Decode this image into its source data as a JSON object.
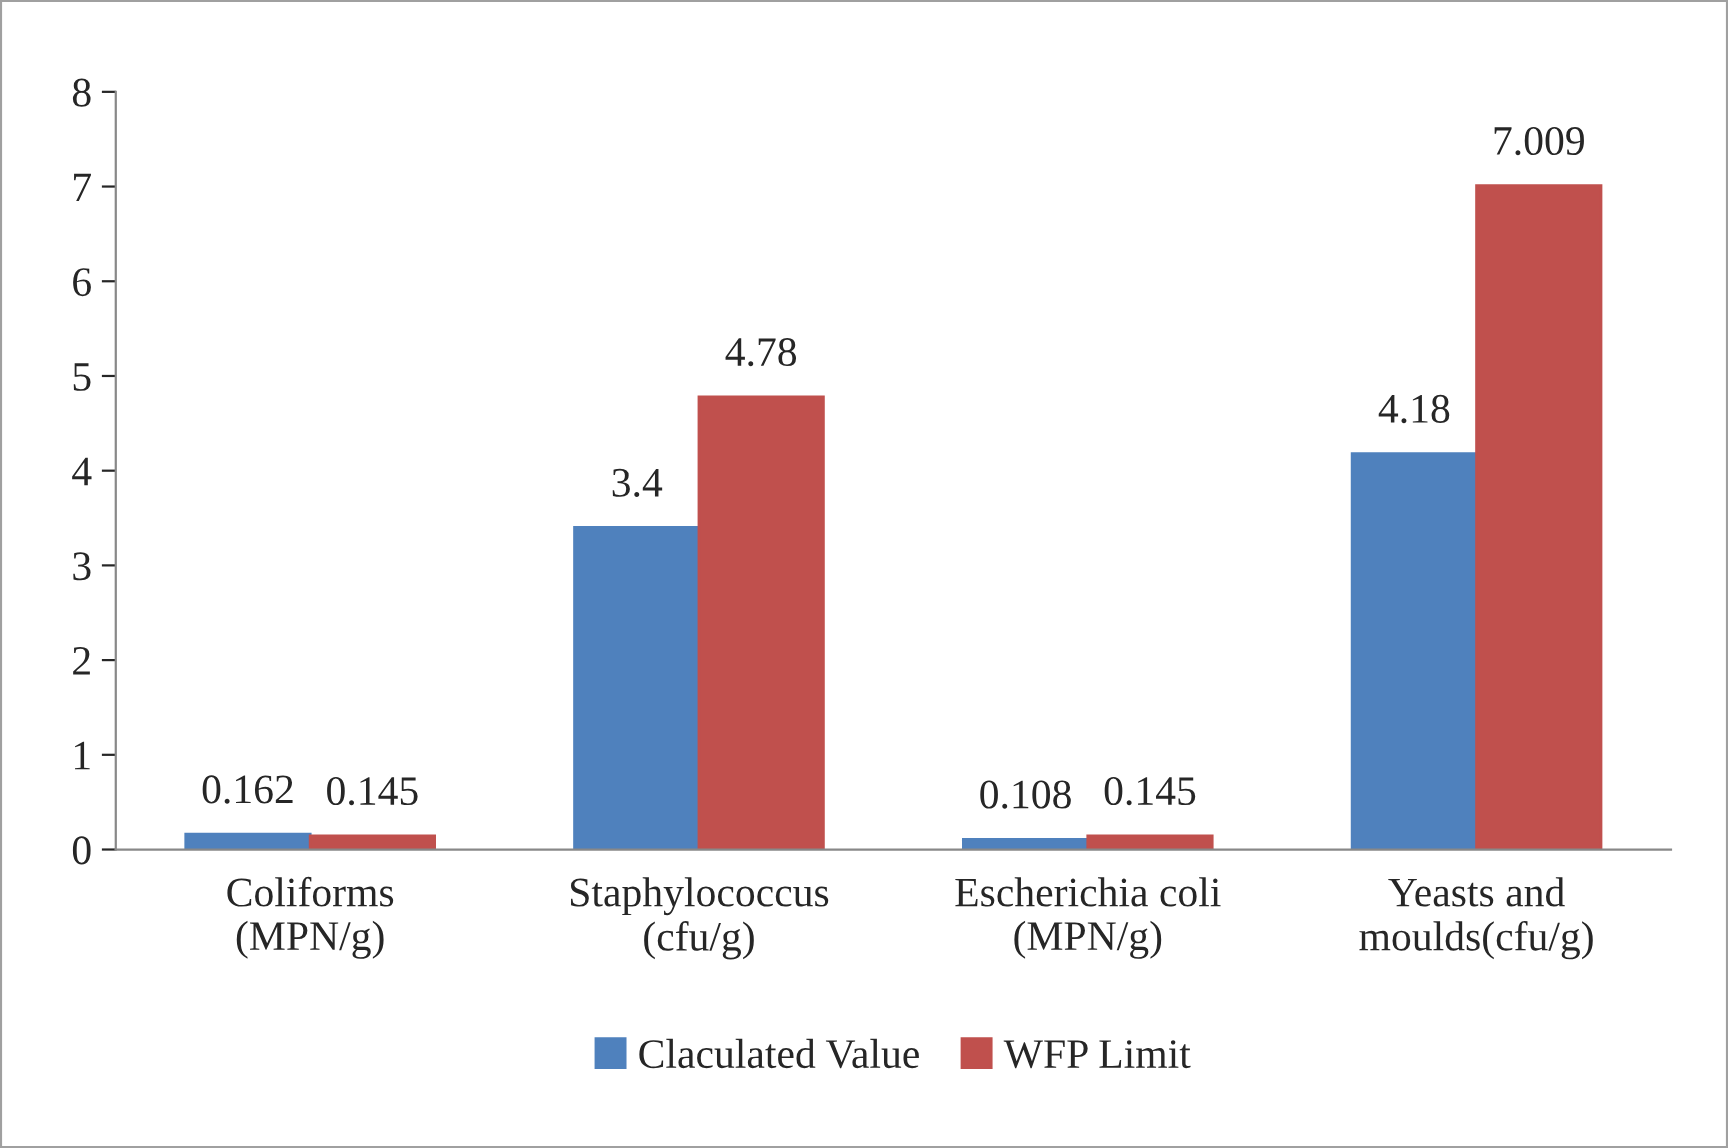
{
  "chart_data": {
    "type": "bar",
    "categories": [
      "Coliforms\n(MPN/g)",
      "Staphylococcus\n(cfu/g)",
      "Escherichia coli\n(MPN/g)",
      "Yeasts and\nmoulds(cfu/g)"
    ],
    "series": [
      {
        "name": "Claculated Value",
        "color": "#4f81bd",
        "values": [
          0.162,
          3.4,
          0.108,
          4.18
        ]
      },
      {
        "name": "WFP Limit",
        "color": "#c0504d",
        "values": [
          0.145,
          4.78,
          0.145,
          7.009
        ]
      }
    ],
    "ylim": [
      0,
      8
    ],
    "yticks": [
      0,
      1,
      2,
      3,
      4,
      5,
      6,
      7,
      8
    ],
    "data_labels": true,
    "grid": false,
    "legend": "bottom"
  }
}
